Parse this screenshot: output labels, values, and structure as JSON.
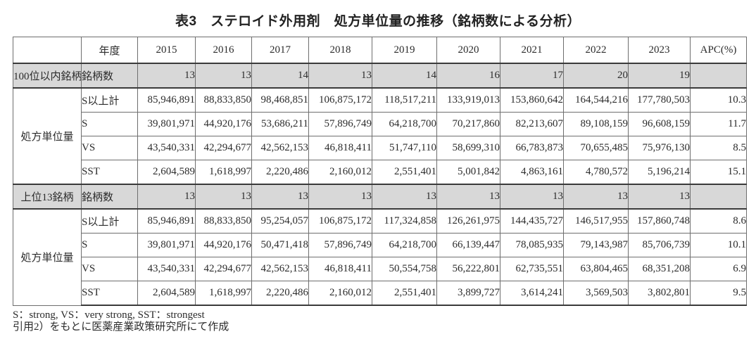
{
  "title": "表3　ステロイド外用剤　処方単位量の推移（銘柄数による分析）",
  "table": {
    "corner_label": "年度",
    "years": [
      "2015",
      "2016",
      "2017",
      "2018",
      "2019",
      "2020",
      "2021",
      "2022",
      "2023"
    ],
    "apc_header": "APC(%)",
    "groups": [
      {
        "name": "100位以内銘柄",
        "brand_count_label": "銘柄数",
        "brand_counts": [
          "13",
          "13",
          "14",
          "13",
          "14",
          "16",
          "17",
          "20",
          "19"
        ],
        "brand_count_apc": "",
        "unit_label": "処方単位量",
        "rows": [
          {
            "label": "S以上計",
            "values": [
              "85,946,891",
              "88,833,850",
              "98,468,851",
              "106,875,172",
              "118,517,211",
              "133,919,013",
              "153,860,642",
              "164,544,216",
              "177,780,503"
            ],
            "apc": "10.3"
          },
          {
            "label": "S",
            "values": [
              "39,801,971",
              "44,920,176",
              "53,686,211",
              "57,896,749",
              "64,218,700",
              "70,217,860",
              "82,213,607",
              "89,108,159",
              "96,608,159"
            ],
            "apc": "11.7"
          },
          {
            "label": "VS",
            "values": [
              "43,540,331",
              "42,294,677",
              "42,562,153",
              "46,818,411",
              "51,747,110",
              "58,699,310",
              "66,783,873",
              "70,655,485",
              "75,976,130"
            ],
            "apc": "8.5"
          },
          {
            "label": "SST",
            "values": [
              "2,604,589",
              "1,618,997",
              "2,220,486",
              "2,160,012",
              "2,551,401",
              "5,001,842",
              "4,863,161",
              "4,780,572",
              "5,196,214"
            ],
            "apc": "15.1"
          }
        ]
      },
      {
        "name": "上位13銘柄",
        "brand_count_label": "銘柄数",
        "brand_counts": [
          "13",
          "13",
          "13",
          "13",
          "13",
          "13",
          "13",
          "13",
          "13"
        ],
        "brand_count_apc": "",
        "unit_label": "処方単位量",
        "rows": [
          {
            "label": "S以上計",
            "values": [
              "85,946,891",
              "88,833,850",
              "95,254,057",
              "106,875,172",
              "117,324,858",
              "126,261,975",
              "144,435,727",
              "146,517,955",
              "157,860,748"
            ],
            "apc": "8.6"
          },
          {
            "label": "S",
            "values": [
              "39,801,971",
              "44,920,176",
              "50,471,418",
              "57,896,749",
              "64,218,700",
              "66,139,447",
              "78,085,935",
              "79,143,987",
              "85,706,739"
            ],
            "apc": "10.1"
          },
          {
            "label": "VS",
            "values": [
              "43,540,331",
              "42,294,677",
              "42,562,153",
              "46,818,411",
              "50,554,758",
              "56,222,801",
              "62,735,551",
              "63,804,465",
              "68,351,208"
            ],
            "apc": "6.9"
          },
          {
            "label": "SST",
            "values": [
              "2,604,589",
              "1,618,997",
              "2,220,486",
              "2,160,012",
              "2,551,401",
              "3,899,727",
              "3,614,241",
              "3,569,503",
              "3,802,801"
            ],
            "apc": "9.5"
          }
        ]
      }
    ]
  },
  "footnotes": [
    "S：strong, VS：very strong, SST：strongest",
    "引用2）をもとに医薬産業政策研究所にて作成"
  ]
}
